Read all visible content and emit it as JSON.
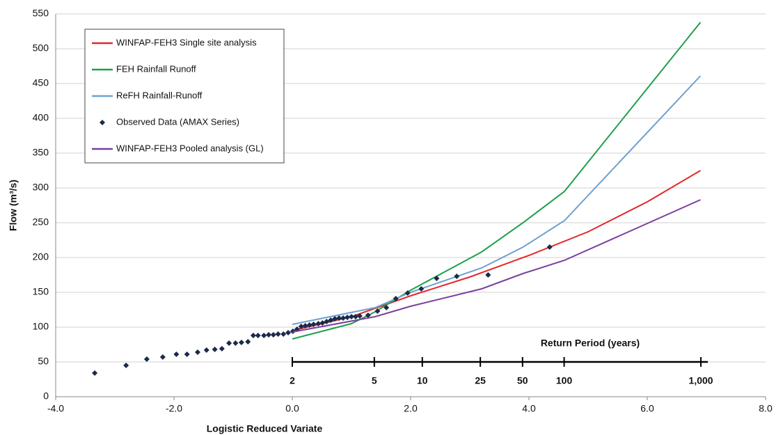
{
  "chart_data": {
    "type": "line",
    "x_label": "Logistic Reduced Variate",
    "y_label": "Flow (m³/s)",
    "xlim": [
      -4,
      8
    ],
    "ylim": [
      0,
      550
    ],
    "xticks": [
      {
        "value": -4,
        "label": "-4.0"
      },
      {
        "value": -2,
        "label": "-2.0"
      },
      {
        "value": 0,
        "label": "0.0"
      },
      {
        "value": 2,
        "label": "2.0"
      },
      {
        "value": 4,
        "label": "4.0"
      },
      {
        "value": 6,
        "label": "6.0"
      },
      {
        "value": 8,
        "label": "8.0"
      }
    ],
    "yticks": [
      0,
      50,
      100,
      150,
      200,
      250,
      300,
      350,
      400,
      450,
      500,
      550
    ],
    "grid": true,
    "legend_position": "top-left",
    "return_period": {
      "title": "Return Period (years)",
      "transform": "logistic",
      "ticks": [
        2,
        5,
        10,
        25,
        50,
        100,
        {
          "value": 1000,
          "label": "1,000"
        }
      ]
    },
    "series": [
      {
        "name": "WINFAP-FEH3 Single site analysis",
        "color": "#e3272a",
        "type": "line",
        "x": [
          0,
          1.0,
          2.0,
          3.0,
          4.0,
          5.0,
          6.0,
          6.9
        ],
        "values": [
          95,
          115,
          145,
          172,
          203,
          237,
          280,
          325
        ]
      },
      {
        "name": "FEH Rainfall Runoff",
        "color": "#1ea04b",
        "type": "line",
        "x": [
          0,
          1.0,
          1.4,
          2.0,
          3.2,
          3.9,
          4.6,
          6.9
        ],
        "values": [
          83,
          105,
          122,
          153,
          208,
          250,
          295,
          538
        ]
      },
      {
        "name": "ReFH Rainfall-Runoff",
        "color": "#6fa0d0",
        "type": "line",
        "x": [
          0,
          1.4,
          2.0,
          3.2,
          3.9,
          4.6,
          6.9
        ],
        "values": [
          104,
          128,
          150,
          185,
          215,
          253,
          461
        ]
      },
      {
        "name": "Observed Data (AMAX Series)",
        "color": "#1b2a4a",
        "type": "scatter",
        "x": [
          -3.34,
          -2.81,
          -2.46,
          -2.19,
          -1.96,
          -1.78,
          -1.6,
          -1.45,
          -1.31,
          -1.19,
          -1.07,
          -0.96,
          -0.86,
          -0.75,
          -0.66,
          -0.58,
          -0.48,
          -0.4,
          -0.32,
          -0.24,
          -0.15,
          -0.07,
          0.01,
          0.08,
          0.15,
          0.22,
          0.29,
          0.36,
          0.44,
          0.51,
          0.58,
          0.65,
          0.72,
          0.79,
          0.86,
          0.93,
          1.0,
          1.07,
          1.14,
          1.28,
          1.44,
          1.59,
          1.75,
          1.95,
          2.18,
          2.44,
          2.78,
          3.31,
          4.35
        ],
        "values": [
          34,
          45,
          54,
          57,
          61,
          61,
          64,
          67,
          68,
          69,
          77,
          77,
          78,
          79,
          88,
          88,
          88,
          89,
          89,
          90,
          90,
          92,
          94,
          97,
          101,
          102,
          103,
          104,
          105,
          106,
          108,
          110,
          112,
          113,
          113,
          114,
          115,
          115,
          116,
          117,
          123,
          128,
          141,
          149,
          155,
          170,
          173,
          175,
          215
        ]
      },
      {
        "name": "WINFAP-FEH3 Pooled analysis (GL)",
        "color": "#7a3f9d",
        "type": "line",
        "x": [
          0,
          1.4,
          2.0,
          3.2,
          3.9,
          4.6,
          6.9
        ],
        "values": [
          93,
          115,
          130,
          155,
          177,
          196,
          283
        ]
      }
    ]
  }
}
